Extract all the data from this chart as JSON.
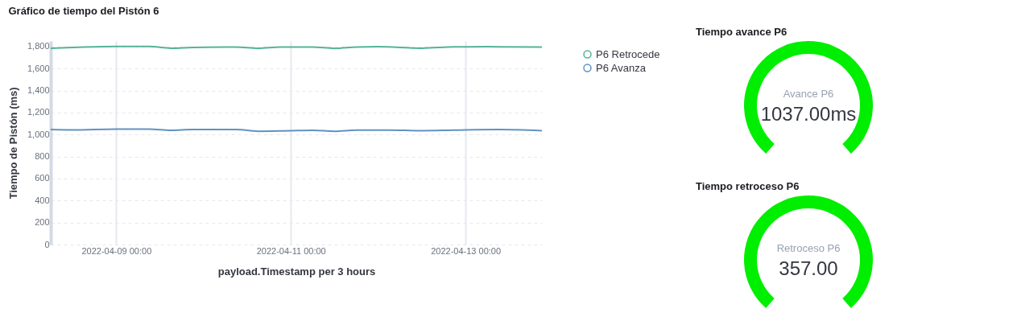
{
  "chart_data": [
    {
      "type": "line",
      "title": "Gráfico de tiempo del Pistón 6",
      "xlabel": "payload.Timestamp per 3 hours",
      "ylabel": "Tiempo de Pistón (ms)",
      "xlim": [
        "2022-04-08T06:00",
        "2022-04-13T21:00"
      ],
      "xticks": [
        {
          "value": "2022-04-09T00:00",
          "label": "2022-04-09 00:00"
        },
        {
          "value": "2022-04-11T00:00",
          "label": "2022-04-11 00:00"
        },
        {
          "value": "2022-04-13T00:00",
          "label": "2022-04-13 00:00"
        }
      ],
      "ylim": [
        0,
        1850
      ],
      "yticks": [
        {
          "value": 0,
          "label": "0"
        },
        {
          "value": 200,
          "label": "200"
        },
        {
          "value": 400,
          "label": "400"
        },
        {
          "value": 600,
          "label": "600"
        },
        {
          "value": 800,
          "label": "800"
        },
        {
          "value": 1000,
          "label": "1,000"
        },
        {
          "value": 1200,
          "label": "1,200"
        },
        {
          "value": 1400,
          "label": "1,400"
        },
        {
          "value": 1600,
          "label": "1,600"
        },
        {
          "value": 1800,
          "label": "1,800"
        }
      ],
      "grid": true,
      "legend": "top right",
      "marker": "none",
      "line_style": "solid",
      "series": [
        {
          "name": "P6 Retrocede",
          "color": "#54b399",
          "x": [
            "2022-04-08T06:00",
            "2022-04-08T15:00",
            "2022-04-09T00:00",
            "2022-04-09T09:00",
            "2022-04-09T15:00",
            "2022-04-09T21:00",
            "2022-04-10T06:00",
            "2022-04-10T09:00",
            "2022-04-10T15:00",
            "2022-04-10T21:00",
            "2022-04-11T06:00",
            "2022-04-11T12:00",
            "2022-04-11T18:00",
            "2022-04-12T00:00",
            "2022-04-12T12:00",
            "2022-04-12T21:00",
            "2022-04-13T06:00",
            "2022-04-13T21:00"
          ],
          "values": [
            1785,
            1795,
            1800,
            1800,
            1785,
            1792,
            1795,
            1795,
            1783,
            1795,
            1795,
            1783,
            1795,
            1798,
            1785,
            1797,
            1798,
            1795
          ]
        },
        {
          "name": "P6 Avanza",
          "color": "#6092c0",
          "x": [
            "2022-04-08T06:00",
            "2022-04-08T12:00",
            "2022-04-09T00:00",
            "2022-04-09T09:00",
            "2022-04-09T15:00",
            "2022-04-09T21:00",
            "2022-04-10T09:00",
            "2022-04-10T15:00",
            "2022-04-11T00:00",
            "2022-04-11T06:00",
            "2022-04-11T12:00",
            "2022-04-11T18:00",
            "2022-04-12T03:00",
            "2022-04-12T12:00",
            "2022-04-12T21:00",
            "2022-04-13T09:00",
            "2022-04-13T21:00"
          ],
          "values": [
            1045,
            1042,
            1050,
            1050,
            1038,
            1045,
            1045,
            1030,
            1035,
            1038,
            1030,
            1040,
            1040,
            1035,
            1040,
            1045,
            1035
          ]
        }
      ]
    },
    {
      "type": "pie",
      "title": "Tiempo avance P6",
      "categories": [
        null
      ],
      "values": [
        100
      ],
      "colors": [
        "#00ee00"
      ],
      "annotations": [
        "Avance P6",
        "1037.00ms"
      ]
    },
    {
      "type": "pie",
      "title": "Tiempo retroceso P6",
      "categories": [
        null
      ],
      "values": [
        100
      ],
      "colors": [
        "#00ee00"
      ],
      "annotations": [
        "Retroceso P6",
        "357.00"
      ]
    }
  ]
}
